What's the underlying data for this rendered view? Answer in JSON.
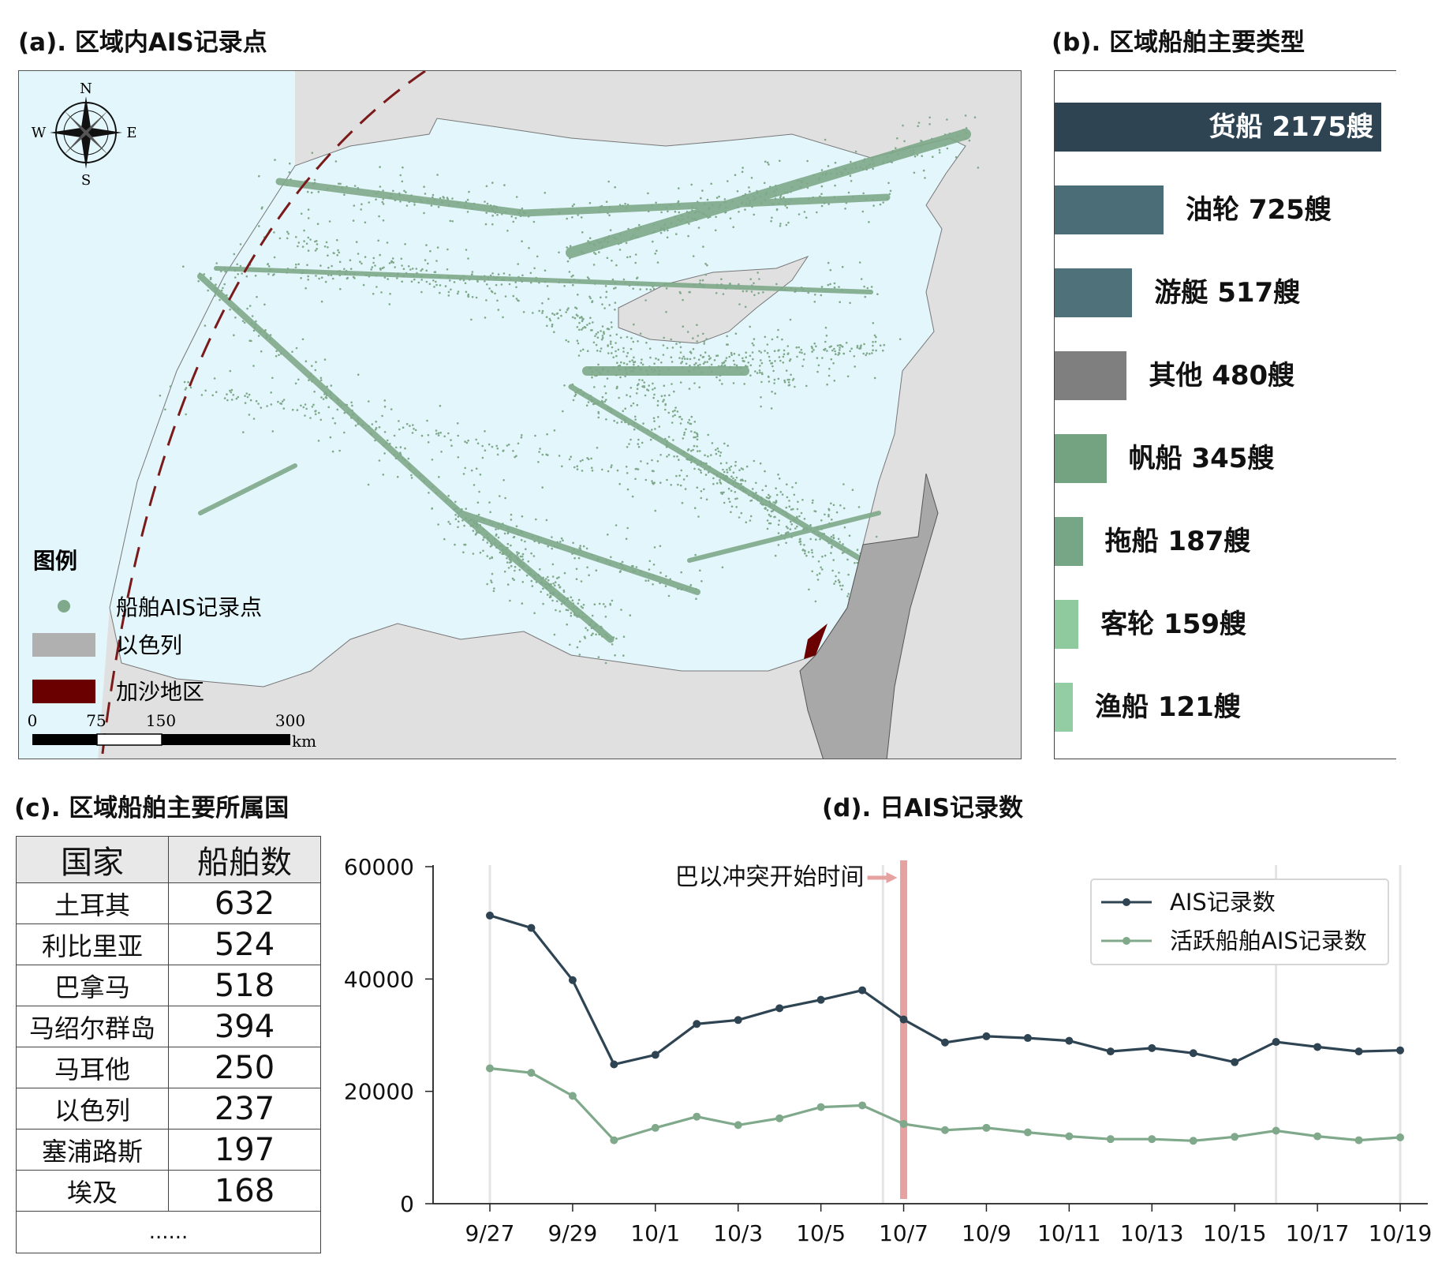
{
  "panels": {
    "a_title": "(a). 区域内AIS记录点",
    "b_title": "(b). 区域船舶主要类型",
    "c_title": "(c). 区域船舶主要所属国",
    "d_title": "(d). 日AIS记录数"
  },
  "map": {
    "compass": {
      "n": "N",
      "s": "S",
      "e": "E",
      "w": "W"
    },
    "legend": {
      "title": "图例",
      "items": [
        {
          "label": "船舶AIS记录点",
          "color": "#7fa98a"
        },
        {
          "label": "以色列",
          "color": "#b0b0b0"
        },
        {
          "label": "加沙地区",
          "color": "#6b0000"
        }
      ]
    },
    "scale_bar": {
      "ticks": [
        "0",
        "75",
        "150",
        "300"
      ],
      "unit": "km"
    },
    "colors": {
      "sea": "#e3f6fb",
      "land": "#e0e0e0",
      "points": "#7fa98a",
      "israel": "#a8a8a8",
      "gaza": "#6b0000",
      "boundary": "#7a1a1a"
    }
  },
  "ship_types": {
    "unit": "艘",
    "items": [
      {
        "name": "货船",
        "count": 2175,
        "color": "#2e4453"
      },
      {
        "name": "油轮",
        "count": 725,
        "color": "#4b6d78"
      },
      {
        "name": "游艇",
        "count": 517,
        "color": "#4e717a"
      },
      {
        "name": "其他",
        "count": 480,
        "color": "#7f7f7f"
      },
      {
        "name": "帆船",
        "count": 345,
        "color": "#74a382"
      },
      {
        "name": "拖船",
        "count": 187,
        "color": "#76a686"
      },
      {
        "name": "客轮",
        "count": 159,
        "color": "#8fca9f"
      },
      {
        "name": "渔船",
        "count": 121,
        "color": "#93cda3"
      }
    ]
  },
  "countries": {
    "headers": [
      "国家",
      "船舶数"
    ],
    "rows": [
      {
        "name": "土耳其",
        "count": "632"
      },
      {
        "name": "利比里亚",
        "count": "524"
      },
      {
        "name": "巴拿马",
        "count": "518"
      },
      {
        "name": "马绍尔群岛",
        "count": "394"
      },
      {
        "name": "马耳他",
        "count": "250"
      },
      {
        "name": "以色列",
        "count": "237"
      },
      {
        "name": "塞浦路斯",
        "count": "197"
      },
      {
        "name": "埃及",
        "count": "168"
      }
    ],
    "ellipsis": "......"
  },
  "chart_data": [
    {
      "type": "bar",
      "categories": [
        "货船",
        "油轮",
        "游艇",
        "其他",
        "帆船",
        "拖船",
        "客轮",
        "渔船"
      ],
      "values": [
        2175,
        725,
        517,
        480,
        345,
        187,
        159,
        121
      ],
      "title": "(b). 区域船舶主要类型",
      "orientation": "horizontal"
    },
    {
      "type": "line",
      "title": "(d). 日AIS记录数",
      "x": [
        "9/27",
        "9/28",
        "9/29",
        "9/30",
        "10/1",
        "10/2",
        "10/3",
        "10/4",
        "10/5",
        "10/6",
        "10/7",
        "10/8",
        "10/9",
        "10/10",
        "10/11",
        "10/12",
        "10/13",
        "10/14",
        "10/15",
        "10/16",
        "10/17",
        "10/18",
        "10/19"
      ],
      "xticks": [
        "9/27",
        "9/29",
        "10/1",
        "10/3",
        "10/5",
        "10/7",
        "10/9",
        "10/11",
        "10/13",
        "10/15",
        "10/17",
        "10/19"
      ],
      "yticks": [
        "0",
        "20000",
        "40000",
        "60000"
      ],
      "ylim": [
        0,
        60000
      ],
      "series": [
        {
          "name": "AIS记录数",
          "color": "#2e4453",
          "values": [
            51300,
            49100,
            39800,
            24800,
            26500,
            32000,
            32700,
            34800,
            36300,
            38000,
            32800,
            28700,
            29800,
            29500,
            29000,
            27100,
            27700,
            26800,
            25200,
            28800,
            27900,
            27100,
            27300
          ]
        },
        {
          "name": "活跃船舶AIS记录数",
          "color": "#7fa98a",
          "values": [
            24100,
            23300,
            19200,
            11300,
            13500,
            15500,
            14000,
            15200,
            17200,
            17500,
            14200,
            13100,
            13500,
            12700,
            12000,
            11500,
            11500,
            11200,
            11900,
            13000,
            12000,
            11300,
            11800
          ]
        }
      ],
      "annotation": {
        "text": "巴以冲突开始时间",
        "x": "10/7",
        "color": "#e6a1a1"
      },
      "legend_position": "top-right"
    }
  ]
}
